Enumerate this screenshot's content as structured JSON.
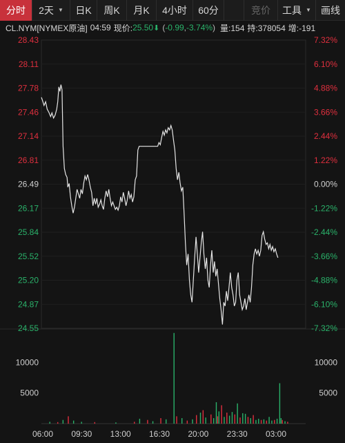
{
  "toolbar": {
    "tabs": [
      {
        "label": "分时",
        "active": true
      },
      {
        "label": "2天",
        "dropdown": true
      },
      {
        "label": "日K"
      },
      {
        "label": "周K"
      },
      {
        "label": "月K"
      },
      {
        "label": "4小时"
      },
      {
        "label": "60分"
      }
    ],
    "right": [
      {
        "label": "竞价",
        "disabled": true
      },
      {
        "label": "工具",
        "dropdown": true
      },
      {
        "label": "画线"
      }
    ]
  },
  "info": {
    "symbol": "CL.NYM[NYMEX原油]",
    "time": "04:59",
    "price_label": "现价:",
    "price": "25.50",
    "change": "-0.99",
    "change_pct": "-3.74%",
    "volume": "量:154",
    "open_interest": "持:378054",
    "oi_change": "增:-191"
  },
  "colors": {
    "up": "#e02f3e",
    "down": "#2ab26a",
    "flat": "#cfcfcf",
    "accent": "#c8313b"
  },
  "chart_data": {
    "type": "line",
    "y_ticks": [
      "28.43",
      "28.11",
      "27.78",
      "27.46",
      "27.14",
      "26.81",
      "26.49",
      "26.17",
      "25.84",
      "25.52",
      "25.20",
      "24.87",
      "24.55"
    ],
    "pct_ticks": [
      "7.32%",
      "6.10%",
      "4.88%",
      "3.66%",
      "2.44%",
      "1.22%",
      "0.00%",
      "-1.22%",
      "-2.44%",
      "-3.66%",
      "-4.88%",
      "-6.10%",
      "-7.32%"
    ],
    "ylim": [
      24.55,
      28.43
    ],
    "prev_close": 26.49,
    "x_ticks": [
      "06:00",
      "09:30",
      "13:00",
      "16:30",
      "20:00",
      "23:30",
      "03:00"
    ],
    "price_series": [
      [
        0,
        27.66
      ],
      [
        0.004,
        27.62
      ],
      [
        0.01,
        27.55
      ],
      [
        0.016,
        27.6
      ],
      [
        0.022,
        27.5
      ],
      [
        0.028,
        27.46
      ],
      [
        0.035,
        27.4
      ],
      [
        0.04,
        27.45
      ],
      [
        0.046,
        27.38
      ],
      [
        0.052,
        27.42
      ],
      [
        0.058,
        27.5
      ],
      [
        0.062,
        27.6
      ],
      [
        0.066,
        27.8
      ],
      [
        0.07,
        27.74
      ],
      [
        0.074,
        27.83
      ],
      [
        0.078,
        27.76
      ],
      [
        0.082,
        27.0
      ],
      [
        0.087,
        26.7
      ],
      [
        0.092,
        26.62
      ],
      [
        0.097,
        26.58
      ],
      [
        0.1,
        26.45
      ],
      [
        0.105,
        26.5
      ],
      [
        0.11,
        26.32
      ],
      [
        0.115,
        26.2
      ],
      [
        0.12,
        26.1
      ],
      [
        0.125,
        26.18
      ],
      [
        0.13,
        26.3
      ],
      [
        0.135,
        26.42
      ],
      [
        0.14,
        26.36
      ],
      [
        0.145,
        26.3
      ],
      [
        0.15,
        26.42
      ],
      [
        0.155,
        26.36
      ],
      [
        0.16,
        26.5
      ],
      [
        0.165,
        26.6
      ],
      [
        0.17,
        26.55
      ],
      [
        0.175,
        26.62
      ],
      [
        0.18,
        26.55
      ],
      [
        0.185,
        26.45
      ],
      [
        0.19,
        26.38
      ],
      [
        0.195,
        26.2
      ],
      [
        0.2,
        26.3
      ],
      [
        0.205,
        26.22
      ],
      [
        0.21,
        26.3
      ],
      [
        0.215,
        26.18
      ],
      [
        0.22,
        26.22
      ],
      [
        0.225,
        26.28
      ],
      [
        0.23,
        26.2
      ],
      [
        0.235,
        26.15
      ],
      [
        0.24,
        26.3
      ],
      [
        0.245,
        26.4
      ],
      [
        0.25,
        26.32
      ],
      [
        0.255,
        26.42
      ],
      [
        0.26,
        26.3
      ],
      [
        0.265,
        26.2
      ],
      [
        0.27,
        26.25
      ],
      [
        0.275,
        26.2
      ],
      [
        0.28,
        26.15
      ],
      [
        0.285,
        26.18
      ],
      [
        0.29,
        26.14
      ],
      [
        0.295,
        26.2
      ],
      [
        0.3,
        26.32
      ],
      [
        0.305,
        26.25
      ],
      [
        0.31,
        26.38
      ],
      [
        0.315,
        26.3
      ],
      [
        0.32,
        26.2
      ],
      [
        0.325,
        26.28
      ],
      [
        0.33,
        26.4
      ],
      [
        0.335,
        26.3
      ],
      [
        0.34,
        26.35
      ],
      [
        0.345,
        26.25
      ],
      [
        0.35,
        26.32
      ],
      [
        0.355,
        26.55
      ],
      [
        0.36,
        26.6
      ],
      [
        0.365,
        26.95
      ],
      [
        0.37,
        27.0
      ],
      [
        0.41,
        27.0
      ],
      [
        0.44,
        27.0
      ],
      [
        0.445,
        27.05
      ],
      [
        0.45,
        27.02
      ],
      [
        0.455,
        27.12
      ],
      [
        0.46,
        27.2
      ],
      [
        0.465,
        27.15
      ],
      [
        0.47,
        27.22
      ],
      [
        0.475,
        27.18
      ],
      [
        0.48,
        27.25
      ],
      [
        0.485,
        27.22
      ],
      [
        0.49,
        27.28
      ],
      [
        0.495,
        27.22
      ],
      [
        0.5,
        27.08
      ],
      [
        0.505,
        26.95
      ],
      [
        0.51,
        26.7
      ],
      [
        0.515,
        26.55
      ],
      [
        0.52,
        26.65
      ],
      [
        0.525,
        26.5
      ],
      [
        0.53,
        26.4
      ],
      [
        0.535,
        26.45
      ],
      [
        0.54,
        26.1
      ],
      [
        0.545,
        25.7
      ],
      [
        0.55,
        25.4
      ],
      [
        0.555,
        25.55
      ],
      [
        0.56,
        25.2
      ],
      [
        0.565,
        25.0
      ],
      [
        0.57,
        24.9
      ],
      [
        0.575,
        25.2
      ],
      [
        0.58,
        25.5
      ],
      [
        0.585,
        25.78
      ],
      [
        0.59,
        25.55
      ],
      [
        0.595,
        25.3
      ],
      [
        0.6,
        25.5
      ],
      [
        0.605,
        25.7
      ],
      [
        0.61,
        25.85
      ],
      [
        0.615,
        25.55
      ],
      [
        0.62,
        25.35
      ],
      [
        0.625,
        25.5
      ],
      [
        0.63,
        25.2
      ],
      [
        0.635,
        25.1
      ],
      [
        0.64,
        25.4
      ],
      [
        0.645,
        25.6
      ],
      [
        0.65,
        25.3
      ],
      [
        0.655,
        25.45
      ],
      [
        0.66,
        25.25
      ],
      [
        0.665,
        25.35
      ],
      [
        0.67,
        25.15
      ],
      [
        0.675,
        24.95
      ],
      [
        0.68,
        24.8
      ],
      [
        0.685,
        24.6
      ],
      [
        0.69,
        24.9
      ],
      [
        0.695,
        24.85
      ],
      [
        0.7,
        25.05
      ],
      [
        0.705,
        24.92
      ],
      [
        0.71,
        25.1
      ],
      [
        0.715,
        25.3
      ],
      [
        0.72,
        25.1
      ],
      [
        0.725,
        25.0
      ],
      [
        0.73,
        24.85
      ],
      [
        0.735,
        24.9
      ],
      [
        0.74,
        25.2
      ],
      [
        0.745,
        25.3
      ],
      [
        0.75,
        25.0
      ],
      [
        0.755,
        24.9
      ],
      [
        0.76,
        24.8
      ],
      [
        0.765,
        24.85
      ],
      [
        0.77,
        24.95
      ],
      [
        0.775,
        24.8
      ],
      [
        0.78,
        24.9
      ],
      [
        0.785,
        25.0
      ],
      [
        0.79,
        24.9
      ],
      [
        0.795,
        25.1
      ],
      [
        0.8,
        25.4
      ],
      [
        0.805,
        25.55
      ],
      [
        0.81,
        25.62
      ],
      [
        0.815,
        25.55
      ],
      [
        0.82,
        25.6
      ],
      [
        0.825,
        25.52
      ],
      [
        0.83,
        25.6
      ],
      [
        0.835,
        25.8
      ],
      [
        0.84,
        25.85
      ],
      [
        0.845,
        25.75
      ],
      [
        0.85,
        25.68
      ],
      [
        0.855,
        25.7
      ],
      [
        0.86,
        25.62
      ],
      [
        0.865,
        25.68
      ],
      [
        0.87,
        25.6
      ],
      [
        0.875,
        25.65
      ],
      [
        0.88,
        25.58
      ],
      [
        0.885,
        25.62
      ],
      [
        0.89,
        25.55
      ],
      [
        0.895,
        25.5
      ]
    ],
    "volume_ticks": [
      "10000",
      "5000"
    ],
    "volume_max": 15000,
    "volume_bars": [
      [
        0.03,
        300,
        "g"
      ],
      [
        0.06,
        250,
        "r"
      ],
      [
        0.08,
        600,
        "g"
      ],
      [
        0.1,
        1200,
        "r"
      ],
      [
        0.12,
        500,
        "g"
      ],
      [
        0.15,
        300,
        "g"
      ],
      [
        0.2,
        250,
        "r"
      ],
      [
        0.28,
        200,
        "g"
      ],
      [
        0.35,
        300,
        "r"
      ],
      [
        0.37,
        800,
        "g"
      ],
      [
        0.4,
        600,
        "r"
      ],
      [
        0.42,
        400,
        "g"
      ],
      [
        0.45,
        900,
        "r"
      ],
      [
        0.47,
        700,
        "g"
      ],
      [
        0.5,
        14800,
        "g"
      ],
      [
        0.51,
        1200,
        "r"
      ],
      [
        0.53,
        900,
        "g"
      ],
      [
        0.55,
        500,
        "r"
      ],
      [
        0.57,
        700,
        "g"
      ],
      [
        0.585,
        1400,
        "r"
      ],
      [
        0.6,
        1800,
        "g"
      ],
      [
        0.61,
        2200,
        "r"
      ],
      [
        0.62,
        1000,
        "g"
      ],
      [
        0.64,
        1500,
        "r"
      ],
      [
        0.65,
        900,
        "g"
      ],
      [
        0.66,
        3500,
        "g"
      ],
      [
        0.665,
        1200,
        "r"
      ],
      [
        0.67,
        2000,
        "g"
      ],
      [
        0.68,
        3000,
        "r"
      ],
      [
        0.69,
        1100,
        "g"
      ],
      [
        0.7,
        1800,
        "r"
      ],
      [
        0.71,
        1300,
        "g"
      ],
      [
        0.72,
        1900,
        "g"
      ],
      [
        0.73,
        1500,
        "r"
      ],
      [
        0.74,
        3300,
        "g"
      ],
      [
        0.75,
        1000,
        "r"
      ],
      [
        0.76,
        1700,
        "g"
      ],
      [
        0.77,
        1600,
        "g"
      ],
      [
        0.78,
        1100,
        "r"
      ],
      [
        0.79,
        900,
        "g"
      ],
      [
        0.8,
        1400,
        "r"
      ],
      [
        0.81,
        600,
        "g"
      ],
      [
        0.82,
        800,
        "g"
      ],
      [
        0.83,
        600,
        "r"
      ],
      [
        0.84,
        700,
        "g"
      ],
      [
        0.85,
        500,
        "r"
      ],
      [
        0.86,
        1100,
        "g"
      ],
      [
        0.87,
        500,
        "g"
      ],
      [
        0.88,
        600,
        "r"
      ],
      [
        0.89,
        800,
        "g"
      ],
      [
        0.9,
        6600,
        "g"
      ],
      [
        0.905,
        900,
        "g"
      ],
      [
        0.91,
        600,
        "r"
      ],
      [
        0.92,
        400,
        "g"
      ],
      [
        0.93,
        300,
        "r"
      ]
    ]
  }
}
